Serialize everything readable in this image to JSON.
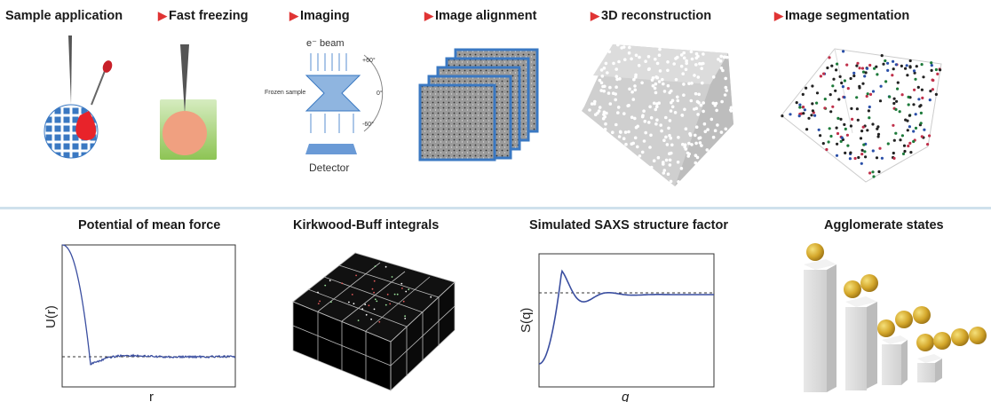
{
  "workflow": {
    "steps": [
      {
        "label": "Sample application",
        "arrow": false
      },
      {
        "label": "Fast freezing",
        "arrow": true
      },
      {
        "label": "Imaging",
        "arrow": true
      },
      {
        "label": "Image alignment",
        "arrow": true
      },
      {
        "label": "3D reconstruction",
        "arrow": true
      },
      {
        "label": "Image segmentation",
        "arrow": true
      }
    ],
    "imaging": {
      "beam_label": "e⁻ beam",
      "sample_label": "Frozen sample",
      "detector_label": "Detector",
      "angle_top": "+60°",
      "angle_mid": "0°",
      "angle_bottom": "-60°"
    },
    "arrow_glyph": "▶"
  },
  "analysis": {
    "panels": [
      {
        "title": "Potential of mean force",
        "ylabel": "U(r)",
        "xlabel": "r"
      },
      {
        "title": "Kirkwood-Buff integrals"
      },
      {
        "title": "Simulated SAXS structure factor",
        "ylabel": "S(q)",
        "xlabel": "q"
      },
      {
        "title": "Agglomerate states"
      }
    ]
  },
  "colors": {
    "accent_red": "#e03434",
    "grid_blue": "#3a78c2",
    "curve_blue": "#3a4ea0",
    "sphere_gold": "#d8b23a",
    "divider": "#cfe1ec"
  }
}
